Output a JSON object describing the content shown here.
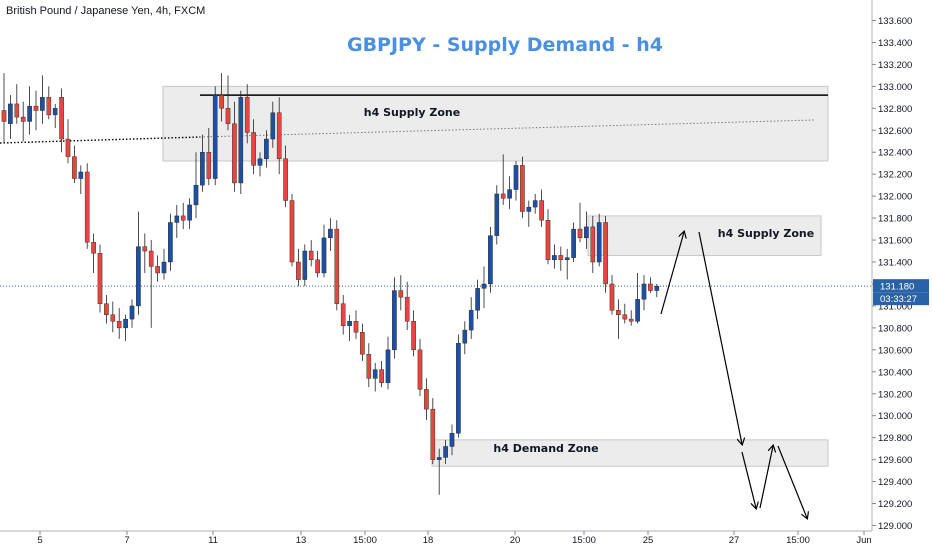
{
  "symbol_label": "British Pound / Japanese Yen, 4h, FXCM",
  "colors": {
    "bull": "#1e4fa0",
    "bear": "#e2483f",
    "title": "#4a90e2",
    "zone_fill": "#ececec",
    "zone_stroke": "#c8c8c8",
    "price_line": "#2a62a8",
    "price_tag_bg": "#2a62a8"
  },
  "chart_data": {
    "type": "candlestick",
    "title": "GBPJPY - Supply Demand - h4",
    "ylim": [
      128.95,
      133.75
    ],
    "y_ticks": [
      "133.600",
      "133.400",
      "133.200",
      "133.000",
      "132.800",
      "132.600",
      "132.400",
      "132.200",
      "132.000",
      "131.800",
      "131.600",
      "131.400",
      "131.200",
      "131.000",
      "130.800",
      "130.600",
      "130.400",
      "130.200",
      "130.000",
      "129.800",
      "129.600",
      "129.400",
      "129.200",
      "129.000"
    ],
    "x_ticks": [
      "5",
      "7",
      "11",
      "13",
      "15:00",
      "18",
      "20",
      "15:00",
      "25",
      "27",
      "15:00",
      "Jun"
    ],
    "current_price": "131.180",
    "countdown": "03:33:27",
    "zones": [
      {
        "label": "h4 Supply Zone",
        "top": 133.0,
        "bottom": 132.32
      },
      {
        "label": "h4 Supply Zone",
        "top": 131.82,
        "bottom": 131.46
      },
      {
        "label": "h4 Demand Zone",
        "top": 129.78,
        "bottom": 129.54
      }
    ],
    "resistance_level": 132.92,
    "candles": [
      {
        "o": 132.78,
        "h": 133.12,
        "l": 132.48,
        "c": 132.68
      },
      {
        "o": 132.66,
        "h": 132.92,
        "l": 132.52,
        "c": 132.84
      },
      {
        "o": 132.84,
        "h": 133.02,
        "l": 132.66,
        "c": 132.72
      },
      {
        "o": 132.72,
        "h": 132.86,
        "l": 132.5,
        "c": 132.68
      },
      {
        "o": 132.68,
        "h": 133.0,
        "l": 132.56,
        "c": 132.82
      },
      {
        "o": 132.82,
        "h": 132.96,
        "l": 132.6,
        "c": 132.78
      },
      {
        "o": 132.78,
        "h": 133.1,
        "l": 132.66,
        "c": 132.9
      },
      {
        "o": 132.9,
        "h": 133.0,
        "l": 132.7,
        "c": 132.74
      },
      {
        "o": 132.74,
        "h": 132.84,
        "l": 132.62,
        "c": 132.8
      },
      {
        "o": 132.9,
        "h": 132.98,
        "l": 132.4,
        "c": 132.52
      },
      {
        "o": 132.52,
        "h": 132.7,
        "l": 132.3,
        "c": 132.36
      },
      {
        "o": 132.36,
        "h": 132.46,
        "l": 132.12,
        "c": 132.16
      },
      {
        "o": 132.16,
        "h": 132.28,
        "l": 132.02,
        "c": 132.22
      },
      {
        "o": 132.22,
        "h": 132.3,
        "l": 131.52,
        "c": 131.58
      },
      {
        "o": 131.58,
        "h": 131.66,
        "l": 131.3,
        "c": 131.48
      },
      {
        "o": 131.48,
        "h": 131.56,
        "l": 130.94,
        "c": 131.02
      },
      {
        "o": 131.02,
        "h": 131.1,
        "l": 130.84,
        "c": 130.92
      },
      {
        "o": 130.92,
        "h": 131.04,
        "l": 130.76,
        "c": 130.86
      },
      {
        "o": 130.86,
        "h": 130.98,
        "l": 130.7,
        "c": 130.8
      },
      {
        "o": 130.8,
        "h": 130.92,
        "l": 130.68,
        "c": 130.88
      },
      {
        "o": 130.88,
        "h": 131.06,
        "l": 130.8,
        "c": 131.0
      },
      {
        "o": 131.0,
        "h": 131.86,
        "l": 130.92,
        "c": 131.54
      },
      {
        "o": 131.54,
        "h": 131.66,
        "l": 131.3,
        "c": 131.5
      },
      {
        "o": 131.5,
        "h": 131.6,
        "l": 130.8,
        "c": 131.36
      },
      {
        "o": 131.36,
        "h": 131.46,
        "l": 131.22,
        "c": 131.3
      },
      {
        "o": 131.3,
        "h": 131.52,
        "l": 131.24,
        "c": 131.4
      },
      {
        "o": 131.4,
        "h": 131.84,
        "l": 131.32,
        "c": 131.76
      },
      {
        "o": 131.76,
        "h": 131.92,
        "l": 131.62,
        "c": 131.82
      },
      {
        "o": 131.82,
        "h": 131.94,
        "l": 131.7,
        "c": 131.78
      },
      {
        "o": 131.78,
        "h": 131.98,
        "l": 131.7,
        "c": 131.92
      },
      {
        "o": 131.92,
        "h": 132.4,
        "l": 131.8,
        "c": 132.1
      },
      {
        "o": 132.1,
        "h": 132.56,
        "l": 132.04,
        "c": 132.4
      },
      {
        "o": 132.4,
        "h": 132.62,
        "l": 132.1,
        "c": 132.16
      },
      {
        "o": 132.16,
        "h": 133.0,
        "l": 132.1,
        "c": 132.92
      },
      {
        "o": 132.92,
        "h": 133.12,
        "l": 132.68,
        "c": 132.8
      },
      {
        "o": 132.8,
        "h": 133.1,
        "l": 132.6,
        "c": 132.66
      },
      {
        "o": 132.66,
        "h": 132.86,
        "l": 132.04,
        "c": 132.12
      },
      {
        "o": 132.12,
        "h": 132.96,
        "l": 132.02,
        "c": 132.9
      },
      {
        "o": 132.9,
        "h": 133.02,
        "l": 132.48,
        "c": 132.58
      },
      {
        "o": 132.58,
        "h": 132.7,
        "l": 132.2,
        "c": 132.28
      },
      {
        "o": 132.28,
        "h": 132.4,
        "l": 132.18,
        "c": 132.34
      },
      {
        "o": 132.34,
        "h": 132.6,
        "l": 132.26,
        "c": 132.52
      },
      {
        "o": 132.52,
        "h": 132.86,
        "l": 132.44,
        "c": 132.76
      },
      {
        "o": 132.76,
        "h": 132.9,
        "l": 132.2,
        "c": 132.34
      },
      {
        "o": 132.34,
        "h": 132.46,
        "l": 131.9,
        "c": 131.96
      },
      {
        "o": 131.96,
        "h": 132.02,
        "l": 131.36,
        "c": 131.4
      },
      {
        "o": 131.4,
        "h": 131.52,
        "l": 131.18,
        "c": 131.24
      },
      {
        "o": 131.24,
        "h": 131.56,
        "l": 131.18,
        "c": 131.5
      },
      {
        "o": 131.5,
        "h": 131.6,
        "l": 131.36,
        "c": 131.42
      },
      {
        "o": 131.42,
        "h": 131.5,
        "l": 131.26,
        "c": 131.3
      },
      {
        "o": 131.3,
        "h": 131.74,
        "l": 131.26,
        "c": 131.62
      },
      {
        "o": 131.62,
        "h": 131.8,
        "l": 131.5,
        "c": 131.7
      },
      {
        "o": 131.7,
        "h": 131.78,
        "l": 130.96,
        "c": 131.02
      },
      {
        "o": 131.02,
        "h": 131.1,
        "l": 130.74,
        "c": 130.82
      },
      {
        "o": 130.82,
        "h": 130.92,
        "l": 130.68,
        "c": 130.86
      },
      {
        "o": 130.86,
        "h": 130.96,
        "l": 130.7,
        "c": 130.76
      },
      {
        "o": 130.76,
        "h": 130.84,
        "l": 130.5,
        "c": 130.56
      },
      {
        "o": 130.56,
        "h": 130.66,
        "l": 130.26,
        "c": 130.34
      },
      {
        "o": 130.34,
        "h": 130.48,
        "l": 130.22,
        "c": 130.42
      },
      {
        "o": 130.42,
        "h": 130.5,
        "l": 130.26,
        "c": 130.3
      },
      {
        "o": 130.3,
        "h": 130.72,
        "l": 130.24,
        "c": 130.6
      },
      {
        "o": 130.6,
        "h": 131.26,
        "l": 130.52,
        "c": 131.14
      },
      {
        "o": 131.14,
        "h": 131.28,
        "l": 130.96,
        "c": 131.08
      },
      {
        "o": 131.08,
        "h": 131.22,
        "l": 130.78,
        "c": 130.86
      },
      {
        "o": 130.86,
        "h": 130.96,
        "l": 130.54,
        "c": 130.6
      },
      {
        "o": 130.6,
        "h": 130.7,
        "l": 130.18,
        "c": 130.24
      },
      {
        "o": 130.24,
        "h": 130.34,
        "l": 129.96,
        "c": 130.06
      },
      {
        "o": 130.06,
        "h": 130.16,
        "l": 129.56,
        "c": 129.6
      },
      {
        "o": 129.6,
        "h": 129.7,
        "l": 129.28,
        "c": 129.62
      },
      {
        "o": 129.62,
        "h": 129.78,
        "l": 129.56,
        "c": 129.72
      },
      {
        "o": 129.72,
        "h": 129.92,
        "l": 129.64,
        "c": 129.84
      },
      {
        "o": 129.84,
        "h": 130.74,
        "l": 129.8,
        "c": 130.66
      },
      {
        "o": 130.66,
        "h": 130.86,
        "l": 130.56,
        "c": 130.78
      },
      {
        "o": 130.78,
        "h": 131.08,
        "l": 130.7,
        "c": 130.96
      },
      {
        "o": 130.96,
        "h": 131.24,
        "l": 130.88,
        "c": 131.16
      },
      {
        "o": 131.16,
        "h": 131.36,
        "l": 130.98,
        "c": 131.2
      },
      {
        "o": 131.2,
        "h": 131.72,
        "l": 131.12,
        "c": 131.64
      },
      {
        "o": 131.64,
        "h": 132.1,
        "l": 131.56,
        "c": 132.02
      },
      {
        "o": 132.02,
        "h": 132.38,
        "l": 131.92,
        "c": 131.98
      },
      {
        "o": 131.98,
        "h": 132.18,
        "l": 131.88,
        "c": 132.06
      },
      {
        "o": 132.06,
        "h": 132.32,
        "l": 131.96,
        "c": 132.28
      },
      {
        "o": 132.28,
        "h": 132.36,
        "l": 131.8,
        "c": 131.86
      },
      {
        "o": 131.86,
        "h": 131.96,
        "l": 131.72,
        "c": 131.9
      },
      {
        "o": 131.9,
        "h": 132.02,
        "l": 131.84,
        "c": 131.96
      },
      {
        "o": 131.96,
        "h": 132.06,
        "l": 131.72,
        "c": 131.78
      },
      {
        "o": 131.78,
        "h": 131.88,
        "l": 131.38,
        "c": 131.42
      },
      {
        "o": 131.42,
        "h": 131.56,
        "l": 131.34,
        "c": 131.46
      },
      {
        "o": 131.46,
        "h": 131.54,
        "l": 131.32,
        "c": 131.42
      },
      {
        "o": 131.42,
        "h": 131.52,
        "l": 131.24,
        "c": 131.44
      },
      {
        "o": 131.44,
        "h": 131.76,
        "l": 131.4,
        "c": 131.7
      },
      {
        "o": 131.7,
        "h": 131.94,
        "l": 131.58,
        "c": 131.62
      },
      {
        "o": 131.62,
        "h": 131.86,
        "l": 131.52,
        "c": 131.72
      },
      {
        "o": 131.72,
        "h": 131.82,
        "l": 131.3,
        "c": 131.4
      },
      {
        "o": 131.4,
        "h": 131.84,
        "l": 131.36,
        "c": 131.76
      },
      {
        "o": 131.76,
        "h": 131.82,
        "l": 131.12,
        "c": 131.2
      },
      {
        "o": 131.2,
        "h": 131.28,
        "l": 130.92,
        "c": 130.96
      },
      {
        "o": 130.96,
        "h": 131.06,
        "l": 130.7,
        "c": 130.92
      },
      {
        "o": 130.92,
        "h": 131.02,
        "l": 130.84,
        "c": 130.88
      },
      {
        "o": 130.88,
        "h": 130.96,
        "l": 130.82,
        "c": 130.86
      },
      {
        "o": 130.86,
        "h": 131.3,
        "l": 130.84,
        "c": 131.06
      },
      {
        "o": 131.06,
        "h": 131.28,
        "l": 130.96,
        "c": 131.2
      },
      {
        "o": 131.2,
        "h": 131.26,
        "l": 131.12,
        "c": 131.14
      },
      {
        "o": 131.14,
        "h": 131.2,
        "l": 131.08,
        "c": 131.18
      }
    ]
  }
}
